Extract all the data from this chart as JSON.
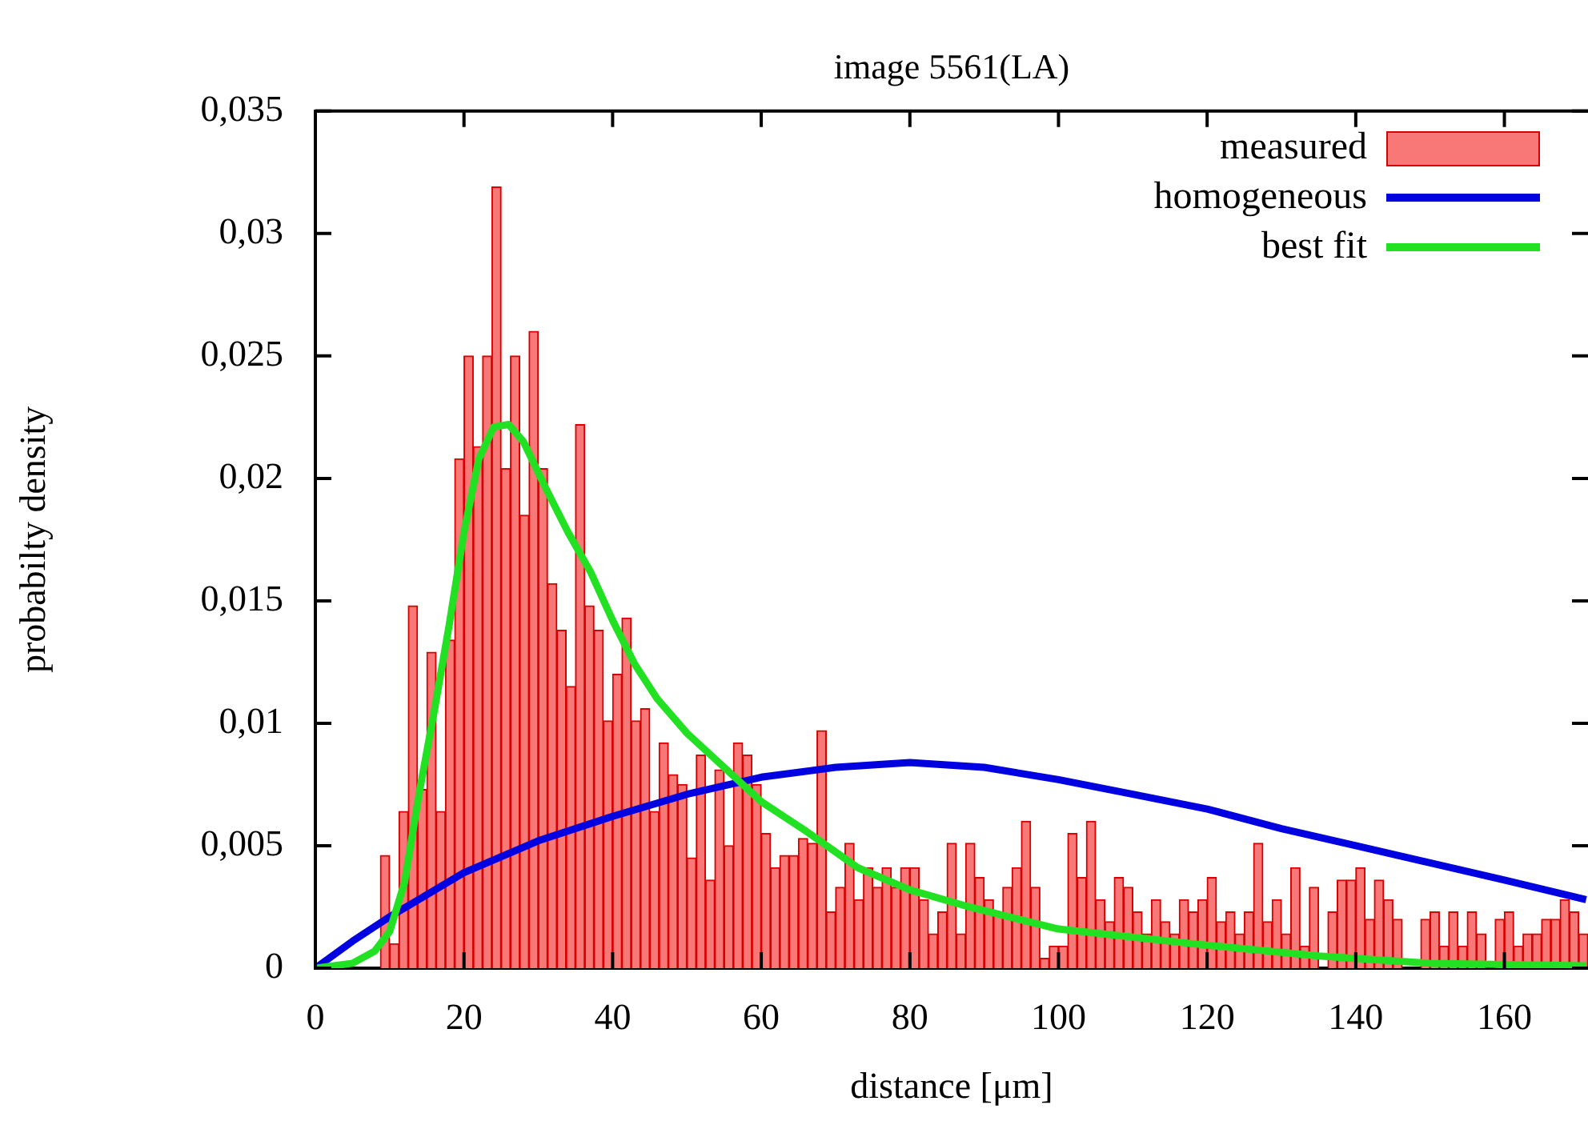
{
  "chart_data": {
    "type": "histogram",
    "title": "image 5561(LA)",
    "xlabel": "distance [μm]",
    "ylabel": "probabilty density",
    "bins": [
      8.75,
      10,
      11.25,
      12.5,
      13.75,
      15,
      16.25,
      17.5,
      18.75,
      20,
      21.25,
      22.5,
      23.75,
      25,
      26.25,
      27.5,
      28.75,
      30,
      31.25,
      32.5,
      33.75,
      35,
      36.25,
      37.5,
      38.75,
      40,
      41.25,
      42.5,
      43.75,
      45,
      46.25,
      47.5,
      48.75,
      50,
      51.25,
      52.5,
      53.75,
      55,
      56.25,
      57.5,
      58.75,
      60,
      61.25,
      62.5,
      63.75,
      65,
      66.25,
      67.5,
      68.75,
      70,
      71.25,
      72.5,
      73.75,
      75,
      76.25,
      77.5,
      78.75,
      80,
      81.25,
      82.5,
      83.75,
      85,
      86.25,
      87.5,
      88.75,
      90,
      91.25,
      92.5,
      93.75,
      95,
      96.25,
      97.5,
      98.75,
      100,
      101.25,
      102.5,
      103.75,
      105,
      106.25,
      107.5,
      108.75,
      110,
      111.25,
      112.5,
      113.75,
      115,
      116.25,
      117.5,
      118.75,
      120,
      121.25,
      122.5,
      123.75,
      125,
      126.25,
      127.5,
      128.75,
      130,
      131.25,
      132.5,
      133.75,
      135,
      136.25,
      137.5,
      138.75,
      140,
      141.25,
      142.5,
      143.75,
      145,
      146.25,
      147.5,
      148.75,
      150,
      151.25,
      152.5,
      153.75,
      155,
      156.25,
      157.5,
      158.75,
      160,
      161.25,
      162.5,
      163.75,
      165,
      166.25,
      167.5,
      168.75,
      170,
      171.25
    ],
    "series": [
      {
        "name": "measured",
        "color": "#f87878",
        "values": [
          0.0046,
          0.001,
          0.0064,
          0.0148,
          0.0073,
          0.0129,
          0.0064,
          0.0134,
          0.0208,
          0.025,
          0.0213,
          0.025,
          0.0319,
          0.0204,
          0.025,
          0.0185,
          0.026,
          0.0204,
          0.0157,
          0.0138,
          0.0115,
          0.0222,
          0.0148,
          0.0138,
          0.0101,
          0.012,
          0.0143,
          0.0101,
          0.0106,
          0.0064,
          0.0092,
          0.0079,
          0.0075,
          0.0045,
          0.0087,
          0.0036,
          0.0081,
          0.005,
          0.0092,
          0.0087,
          0.0075,
          0.0055,
          0.0041,
          0.0046,
          0.0046,
          0.0053,
          0.0051,
          0.0097,
          0.0023,
          0.0033,
          0.0051,
          0.0028,
          0.0041,
          0.0033,
          0.0041,
          0.0033,
          0.0041,
          0.0041,
          0.0028,
          0.0014,
          0.0023,
          0.0051,
          0.0014,
          0.0051,
          0.0037,
          0.0028,
          0.0023,
          0.0033,
          0.0041,
          0.006,
          0.0033,
          0.0004,
          0.0009,
          0.0009,
          0.0055,
          0.0037,
          0.006,
          0.0028,
          0.0019,
          0.0037,
          0.0033,
          0.0023,
          0.0014,
          0.0028,
          0.0019,
          0.0014,
          0.0028,
          0.0023,
          0.0028,
          0.0037,
          0.0019,
          0.0023,
          0.0014,
          0.0023,
          0.0051,
          0.0019,
          0.0028,
          0.0014,
          0.0041,
          0.0009,
          0.0033,
          0,
          0.0023,
          0.0036,
          0.0036,
          0.0041,
          0.002,
          0.0036,
          0.0028,
          0.002,
          0,
          0,
          0.002,
          0.0023,
          0.0009,
          0.0023,
          0.0009,
          0.0023,
          0.0014,
          null,
          0.002,
          0.0023,
          0.0009,
          0.0014,
          0.0014,
          0.002,
          0.002,
          0.0028,
          0.0023,
          0.0014
        ]
      },
      {
        "name": "homogeneous",
        "type": "line",
        "color": "#0000e0",
        "x": [
          0,
          5,
          10,
          20,
          30,
          40,
          50,
          60,
          70,
          80,
          90,
          100,
          110,
          120,
          130,
          140,
          150,
          160,
          171
        ],
        "values": [
          0,
          0.0011,
          0.0021,
          0.0039,
          0.0052,
          0.0062,
          0.0071,
          0.0078,
          0.0082,
          0.0084,
          0.0082,
          0.0077,
          0.0071,
          0.0065,
          0.0057,
          0.005,
          0.0043,
          0.0036,
          0.0028
        ]
      },
      {
        "name": "best fit",
        "type": "line",
        "color": "#22e022",
        "x": [
          0,
          5,
          8,
          10,
          12,
          14,
          16,
          18,
          20,
          22,
          24,
          26,
          28,
          31,
          34,
          37,
          40,
          43,
          46,
          50,
          55,
          60,
          66,
          73,
          80,
          88,
          100,
          118,
          135,
          150,
          171
        ],
        "values": [
          0,
          0.0002,
          0.0007,
          0.0015,
          0.0035,
          0.0072,
          0.0105,
          0.014,
          0.0178,
          0.0208,
          0.0221,
          0.0222,
          0.0215,
          0.0196,
          0.0178,
          0.0162,
          0.0142,
          0.0124,
          0.011,
          0.0096,
          0.0082,
          0.0068,
          0.0056,
          0.0041,
          0.0032,
          0.0025,
          0.0016,
          0.001,
          0.0005,
          0.0002,
          0.0001
        ]
      }
    ],
    "xlim": [
      0,
      171.25
    ],
    "xticks": [
      0,
      20,
      40,
      60,
      80,
      100,
      120,
      140,
      160
    ],
    "ylim": [
      0,
      0.035
    ],
    "yticks": [
      {
        "value": 0,
        "label": "0"
      },
      {
        "value": 0.005,
        "label": "0,005"
      },
      {
        "value": 0.01,
        "label": "0,01"
      },
      {
        "value": 0.015,
        "label": "0,015"
      },
      {
        "value": 0.02,
        "label": "0,02"
      },
      {
        "value": 0.025,
        "label": "0,025"
      },
      {
        "value": 0.03,
        "label": "0,03"
      },
      {
        "value": 0.035,
        "label": "0,035"
      }
    ],
    "legend": "top right"
  }
}
